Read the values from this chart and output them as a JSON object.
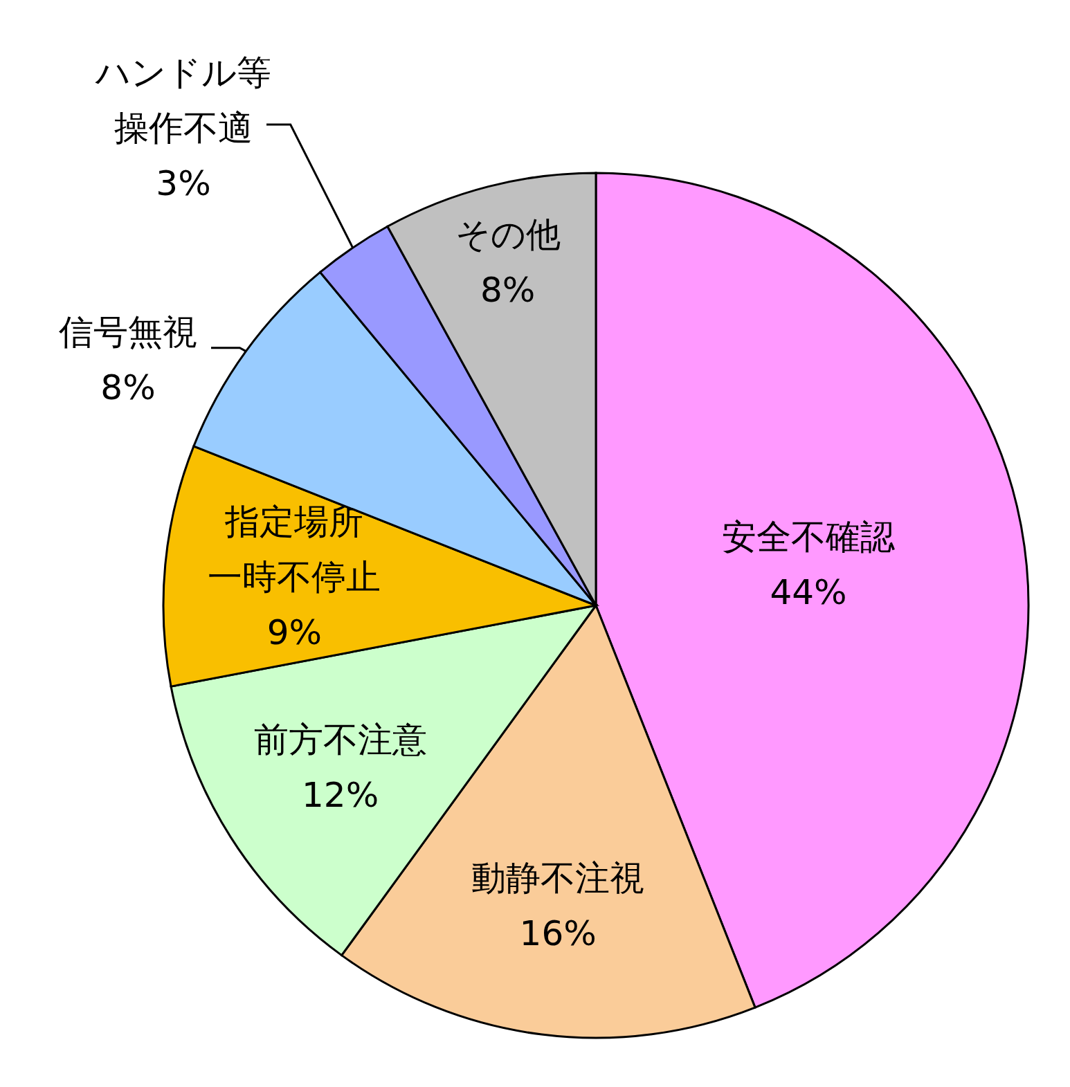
{
  "chart_data": {
    "type": "pie",
    "categories": [
      "安全不確認",
      "動静不注視",
      "前方不注意",
      "指定場所一時不停止",
      "信号無視",
      "ハンドル等操作不適",
      "その他"
    ],
    "values": [
      44,
      16,
      12,
      9,
      8,
      3,
      8
    ],
    "colors": [
      "#ff99ff",
      "#facc99",
      "#ccffcc",
      "#f9bf00",
      "#99ccff",
      "#9999ff",
      "#c0c0c0"
    ],
    "value_labels": [
      "44%",
      "16%",
      "12%",
      "9%",
      "8%",
      "3%",
      "8%"
    ]
  }
}
